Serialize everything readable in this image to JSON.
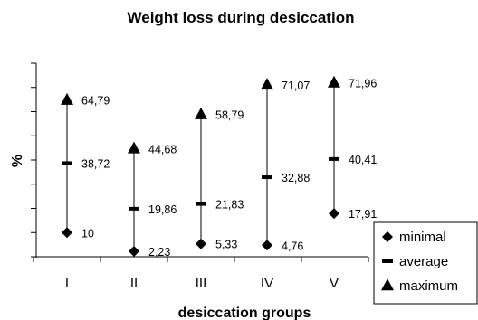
{
  "chart_data": {
    "type": "scatter",
    "title": "Weight loss during desiccation",
    "xlabel": "desiccation groups",
    "ylabel": "%",
    "categories": [
      "I",
      "II",
      "III",
      "IV",
      "V"
    ],
    "ylim": [
      0,
      80
    ],
    "grid": false,
    "legend_position": "bottom-right",
    "series": [
      {
        "name": "minimal",
        "marker": "diamond",
        "values": [
          10,
          2.23,
          5.33,
          4.76,
          17.91
        ],
        "labels": [
          "10",
          "2,23",
          "5,33",
          "4,76",
          "17,91"
        ]
      },
      {
        "name": "average",
        "marker": "dash",
        "values": [
          38.72,
          19.86,
          21.83,
          32.88,
          40.41
        ],
        "labels": [
          "38,72",
          "19,86",
          "21,83",
          "32,88",
          "40,41"
        ]
      },
      {
        "name": "maximum",
        "marker": "triangle",
        "values": [
          64.79,
          44.68,
          58.79,
          71.07,
          71.96
        ],
        "labels": [
          "64,79",
          "44,68",
          "58,79",
          "71,07",
          "71,96"
        ]
      }
    ]
  }
}
